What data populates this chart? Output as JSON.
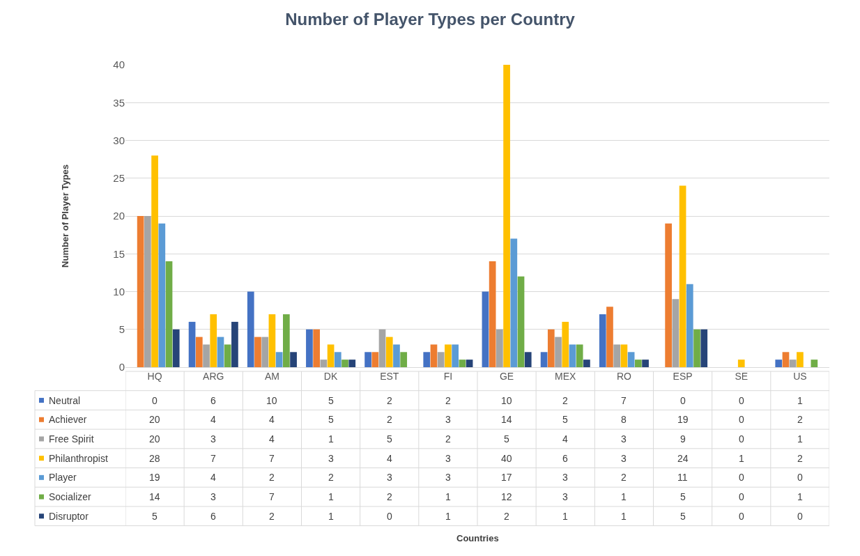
{
  "chart_data": {
    "type": "bar",
    "title": "Number of Player Types per Country",
    "annotations": [
      "Countries"
    ],
    "ylabel": "Number of Player Types",
    "categories": [
      "HQ",
      "ARG",
      "AM",
      "DK",
      "EST",
      "FI",
      "GE",
      "MEX",
      "RO",
      "ESP",
      "SE",
      "US"
    ],
    "series": [
      {
        "name": "Neutral",
        "color": "#4472c4",
        "values": [
          0,
          6,
          10,
          5,
          2,
          2,
          10,
          2,
          7,
          0,
          0,
          1
        ]
      },
      {
        "name": "Achiever",
        "color": "#ed7d31",
        "values": [
          20,
          4,
          4,
          5,
          2,
          3,
          14,
          5,
          8,
          19,
          0,
          2
        ]
      },
      {
        "name": "Free Spirit",
        "color": "#a5a5a5",
        "values": [
          20,
          3,
          4,
          1,
          5,
          2,
          5,
          4,
          3,
          9,
          0,
          1
        ]
      },
      {
        "name": "Philanthropist",
        "color": "#ffc000",
        "values": [
          28,
          7,
          7,
          3,
          4,
          3,
          40,
          6,
          3,
          24,
          1,
          2
        ]
      },
      {
        "name": "Player",
        "color": "#5b9bd5",
        "values": [
          19,
          4,
          2,
          2,
          3,
          3,
          17,
          3,
          2,
          11,
          0,
          0
        ]
      },
      {
        "name": "Socializer",
        "color": "#70ad47",
        "values": [
          14,
          3,
          7,
          1,
          2,
          1,
          12,
          3,
          1,
          5,
          0,
          1
        ]
      },
      {
        "name": "Disruptor",
        "color": "#264478",
        "values": [
          5,
          6,
          2,
          1,
          0,
          1,
          2,
          1,
          1,
          5,
          0,
          0
        ]
      }
    ],
    "ylim": [
      0,
      40
    ],
    "yticks": [
      0,
      5,
      10,
      15,
      20,
      25,
      30,
      35,
      40
    ],
    "grid": "y",
    "legend": "bottom",
    "data_labels": true
  }
}
